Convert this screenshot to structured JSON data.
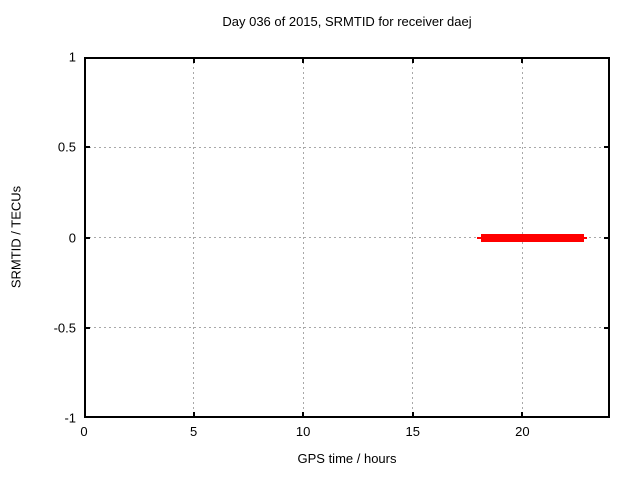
{
  "chart_data": {
    "type": "line",
    "title": "Day 036 of 2015, SRMTID for receiver daej",
    "xlabel": "GPS time / hours",
    "ylabel": "SRMTID / TECUs",
    "xlim": [
      0,
      24
    ],
    "ylim": [
      -1,
      1
    ],
    "xticks": [
      0,
      5,
      10,
      15,
      20
    ],
    "yticks": [
      1,
      0.5,
      0,
      -0.5,
      -1
    ],
    "grid": true,
    "legend": "none",
    "series": [
      {
        "name": "SRMTID",
        "color": "#ff0000",
        "shape": "horizontal-segment",
        "y": 0.0,
        "x_start": 18.1,
        "x_end": 22.8,
        "thin_cap_extend": 0.15
      }
    ]
  },
  "colors": {
    "background": "#ffffff",
    "border": "#000000",
    "grid": "#a8a8a8",
    "text": "#000000",
    "series": "#ff0000"
  }
}
